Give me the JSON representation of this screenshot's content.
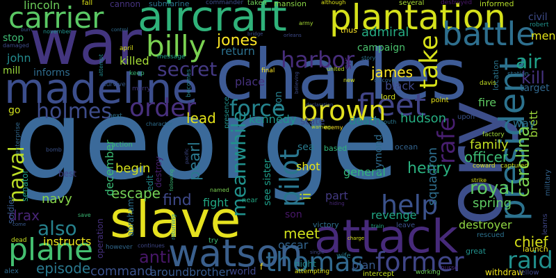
{
  "words": [
    {
      "text": "george",
      "color": "#3b6a9a"
    },
    {
      "text": "charles",
      "color": "#3e5b96"
    },
    {
      "text": "war",
      "color": "#43357f"
    },
    {
      "text": "slave",
      "color": "#e6e21f"
    },
    {
      "text": "aircraft",
      "color": "#2fb27a"
    },
    {
      "text": "plantation",
      "color": "#d5e11b"
    },
    {
      "text": "madeline",
      "color": "#3c4e8c"
    },
    {
      "text": "attack",
      "color": "#472a7a"
    },
    {
      "text": "watson",
      "color": "#3a5f8c"
    },
    {
      "text": "ory",
      "color": "#3d4e8a"
    },
    {
      "text": "battle",
      "color": "#2e6f8e"
    },
    {
      "text": "carrier",
      "color": "#5ac864"
    },
    {
      "text": "billy",
      "color": "#7ad151"
    },
    {
      "text": "fleet",
      "color": "#414487"
    },
    {
      "text": "order",
      "color": "#48307e"
    },
    {
      "text": "brown",
      "color": "#e1e11f"
    },
    {
      "text": "president",
      "color": "#2c728e"
    },
    {
      "text": "plane",
      "color": "#44bf70"
    },
    {
      "text": "pilot",
      "color": "#2a768e"
    },
    {
      "text": "meanwhile",
      "color": "#21918c"
    },
    {
      "text": "thomas",
      "color": "#31688e"
    },
    {
      "text": "former",
      "color": "#404688"
    },
    {
      "text": "take",
      "color": "#d8e219"
    },
    {
      "text": "help",
      "color": "#3b528b"
    },
    {
      "text": "harbor",
      "color": "#472d7b"
    },
    {
      "text": "force",
      "color": "#25848e"
    },
    {
      "text": "holmes",
      "color": "#3e4c8a"
    },
    {
      "text": "secret",
      "color": "#443983"
    },
    {
      "text": "naval",
      "color": "#bddf26"
    },
    {
      "text": "raid",
      "color": "#21908d"
    },
    {
      "text": "royal",
      "color": "#5ec962"
    },
    {
      "text": "also",
      "color": "#26828e"
    },
    {
      "text": "rafe",
      "color": "#481f70"
    },
    {
      "text": "carolina",
      "color": "#7ad151"
    },
    {
      "text": "air",
      "color": "#1fa088"
    },
    {
      "text": "kill",
      "color": "#46337f"
    },
    {
      "text": "jones",
      "color": "#fde725"
    },
    {
      "text": "james",
      "color": "#fde725"
    },
    {
      "text": "admiral",
      "color": "#25ab82"
    },
    {
      "text": "lincoln",
      "color": "#6ccd5a"
    },
    {
      "text": "escape",
      "color": "#73d056"
    },
    {
      "text": "henry",
      "color": "#2ab07f"
    },
    {
      "text": "officer",
      "color": "#3dbc74"
    },
    {
      "text": "family",
      "color": "#c2df23"
    },
    {
      "text": "spring",
      "color": "#5ec962"
    },
    {
      "text": "find",
      "color": "#3e4989"
    },
    {
      "text": "fight",
      "color": "#22a884"
    },
    {
      "text": "drax",
      "color": "#482576"
    },
    {
      "text": "instructs",
      "color": "#efe51c"
    },
    {
      "text": "episode",
      "color": "#2a788e"
    },
    {
      "text": "command",
      "color": "#3b528b"
    },
    {
      "text": "anti",
      "color": "#481769"
    },
    {
      "text": "around",
      "color": "#38598c"
    },
    {
      "text": "brother",
      "color": "#375b8d"
    },
    {
      "text": "plan",
      "color": "#38598c"
    },
    {
      "text": "chief",
      "color": "#d8e219"
    },
    {
      "text": "destroyer",
      "color": "#90d743"
    },
    {
      "text": "navy",
      "color": "#86d549"
    },
    {
      "text": "begin",
      "color": "#d5e21a"
    },
    {
      "text": "december",
      "color": "#3bbb75"
    },
    {
      "text": "pearl",
      "color": "#2a788e"
    },
    {
      "text": "lead",
      "color": "#e5e419"
    },
    {
      "text": "kennedy",
      "color": "#1f958b"
    },
    {
      "text": "death",
      "color": "#24868e"
    },
    {
      "text": "hudson",
      "color": "#26ad81"
    },
    {
      "text": "state",
      "color": "#3e4a89"
    },
    {
      "text": "sea",
      "color": "#297a8e"
    },
    {
      "text": "shot",
      "color": "#e5e419"
    },
    {
      "text": "general",
      "color": "#32b67a"
    },
    {
      "text": "part",
      "color": "#443a83"
    },
    {
      "text": "revenge",
      "color": "#22a785"
    },
    {
      "text": "son",
      "color": "#48186a"
    },
    {
      "text": "meet",
      "color": "#d0e11c"
    },
    {
      "text": "oscar",
      "color": "#32648e"
    },
    {
      "text": "iron",
      "color": "#277f8e"
    },
    {
      "text": "return",
      "color": "#2c718e"
    },
    {
      "text": "place",
      "color": "#46327e"
    },
    {
      "text": "black",
      "color": "#3f4889"
    },
    {
      "text": "killed",
      "color": "#a5db36"
    },
    {
      "text": "mill",
      "color": "#9bd93c"
    },
    {
      "text": "john",
      "color": "#238a8d"
    },
    {
      "text": "informs",
      "color": "#2f6c8e"
    },
    {
      "text": "stop",
      "color": "#3fbc73"
    },
    {
      "text": "campaign",
      "color": "#4ac16d"
    },
    {
      "text": "men",
      "color": "#e3e418"
    },
    {
      "text": "civil",
      "color": "#3e4c8a"
    },
    {
      "text": "fire",
      "color": "#5ec962"
    },
    {
      "text": "target",
      "color": "#31688e"
    },
    {
      "text": "brett",
      "color": "#9dd93b"
    },
    {
      "text": "raymond",
      "color": "#2f6c8e"
    },
    {
      "text": "ii",
      "color": "#c8e020"
    },
    {
      "text": "see sister",
      "color": "#1e9d89"
    },
    {
      "text": "squadron",
      "color": "#2e6e8e"
    },
    {
      "text": "go",
      "color": "#d0e11c"
    },
    {
      "text": "cannon",
      "color": "#46337f"
    },
    {
      "text": "submarine",
      "color": "#2c738e"
    },
    {
      "text": "fall",
      "color": "#dde318"
    },
    {
      "text": "commander",
      "color": "#3d4e8a"
    },
    {
      "text": "taken",
      "color": "#6ece58"
    },
    {
      "text": "mansion",
      "color": "#8bd646"
    },
    {
      "text": "several",
      "color": "#a8db34"
    },
    {
      "text": "destroyed",
      "color": "#481769"
    },
    {
      "text": "informed",
      "color": "#b5de2b"
    },
    {
      "text": "lord",
      "color": "#d2e21b"
    },
    {
      "text": "thus",
      "color": "#fde725"
    },
    {
      "text": "way",
      "color": "#2c728e"
    },
    {
      "text": "point",
      "color": "#e7e419"
    },
    {
      "text": "sir",
      "color": "#482475"
    },
    {
      "text": "senator",
      "color": "#1f9f88"
    },
    {
      "text": "soldier",
      "color": "#375b8d"
    },
    {
      "text": "abraham",
      "color": "#2d708e"
    },
    {
      "text": "edit",
      "color": "#228c8d"
    },
    {
      "text": "destroy",
      "color": "#482071"
    },
    {
      "text": "operation",
      "color": "#46307e"
    },
    {
      "text": "world",
      "color": "#3f4788"
    },
    {
      "text": "night",
      "color": "#238a8d"
    },
    {
      "text": "victory",
      "color": "#2e6f8e"
    },
    {
      "text": "intercept",
      "color": "#c5e021"
    },
    {
      "text": "alex",
      "color": "#2f6b8e"
    },
    {
      "text": "launch",
      "color": "#f1e51d"
    },
    {
      "text": "withdraw",
      "color": "#f1e51d"
    },
    {
      "text": "fellow",
      "color": "#3f4889"
    },
    {
      "text": "great",
      "color": "#21918c"
    },
    {
      "text": "ocean",
      "color": "#33638d"
    },
    {
      "text": "based",
      "color": "#31b57b"
    },
    {
      "text": "action",
      "color": "#38b977"
    },
    {
      "text": "best",
      "color": "#414487"
    },
    {
      "text": "try",
      "color": "#3dbc74"
    },
    {
      "text": "f",
      "color": "#fde725"
    },
    {
      "text": "near",
      "color": "#22a884"
    },
    {
      "text": "attempting",
      "color": "#dde318"
    },
    {
      "text": "working",
      "color": "#6ece58"
    },
    {
      "text": "nurse",
      "color": "#482878"
    },
    {
      "text": "wife",
      "color": "#287d8e"
    },
    {
      "text": "leave",
      "color": "#3b528b"
    },
    {
      "text": "rescued",
      "color": "#2c718e"
    },
    {
      "text": "learns",
      "color": "#3f4788"
    },
    {
      "text": "military",
      "color": "#32648e"
    },
    {
      "text": "coward",
      "color": "#d8e219"
    },
    {
      "text": "captured",
      "color": "#c8e020"
    },
    {
      "text": "factory",
      "color": "#a2da37"
    },
    {
      "text": "station",
      "color": "#2e6e8e"
    },
    {
      "text": "location",
      "color": "#2b758e"
    },
    {
      "text": "robert",
      "color": "#21918c"
    },
    {
      "text": "upon",
      "color": "#3b528b"
    },
    {
      "text": "davis",
      "color": "#c2df23"
    },
    {
      "text": "united",
      "color": "#b8de29"
    },
    {
      "text": "final",
      "color": "#fde725"
    },
    {
      "text": "message",
      "color": "#20a486"
    },
    {
      "text": "april",
      "color": "#dde318"
    },
    {
      "text": "keep",
      "color": "#38b977"
    },
    {
      "text": "survive",
      "color": "#38588c"
    },
    {
      "text": "marry",
      "color": "#443a83"
    },
    {
      "text": "presence",
      "color": "#21918c"
    },
    {
      "text": "becomes",
      "color": "#26828e"
    },
    {
      "text": "character",
      "color": "#2e6d8e"
    },
    {
      "text": "named",
      "color": "#7ad151"
    },
    {
      "text": "continues",
      "color": "#3f4788"
    },
    {
      "text": "however",
      "color": "#31688e"
    },
    {
      "text": "returning",
      "color": "#23898e"
    },
    {
      "text": "following",
      "color": "#3bbb75"
    },
    {
      "text": "pacific",
      "color": "#3e4989"
    },
    {
      "text": "enemy",
      "color": "#fde725"
    },
    {
      "text": "warning",
      "color": "#c2df23"
    },
    {
      "text": "declaration",
      "color": "#3b528b"
    },
    {
      "text": "discover",
      "color": "#33638d"
    },
    {
      "text": "south",
      "color": "#2a788e"
    },
    {
      "text": "army",
      "color": "#a8db34"
    },
    {
      "text": "story",
      "color": "#2c738e"
    },
    {
      "text": "new",
      "color": "#d5e21a"
    },
    {
      "text": "bridge",
      "color": "#3d4e8a"
    },
    {
      "text": "orleans",
      "color": "#3e4a89"
    },
    {
      "text": "november",
      "color": "#21918c"
    },
    {
      "text": "burn",
      "color": "#38588c"
    },
    {
      "text": "damaged",
      "color": "#3e4c8a"
    },
    {
      "text": "attempt",
      "color": "#23898e"
    },
    {
      "text": "enterprise",
      "color": "#31688e"
    },
    {
      "text": "bomb",
      "color": "#3b528b"
    },
    {
      "text": "hiding",
      "color": "#482878"
    },
    {
      "text": "strike",
      "color": "#dde318"
    },
    {
      "text": "charge",
      "color": "#d5e21a"
    },
    {
      "text": "train",
      "color": "#22a785"
    },
    {
      "text": "single",
      "color": "#3f4788"
    },
    {
      "text": "dead",
      "color": "#c8e020"
    },
    {
      "text": "save",
      "color": "#3bbb75"
    },
    {
      "text": "come",
      "color": "#38598c"
    },
    {
      "text": "next",
      "color": "#2c738e"
    },
    {
      "text": "control",
      "color": "#2f6b8e"
    },
    {
      "text": "believing",
      "color": "#3e4c8a"
    },
    {
      "text": "although",
      "color": "#dde318"
    }
  ]
}
